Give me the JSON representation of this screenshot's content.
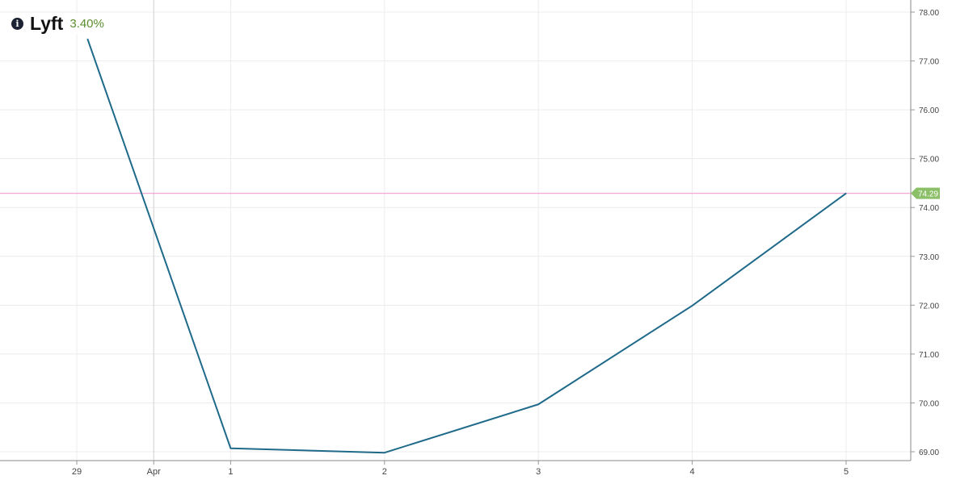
{
  "header": {
    "icon": "info-icon",
    "title": "Lyft",
    "change": "3.40%",
    "change_color": "#5a8f2e"
  },
  "chart_data": {
    "type": "line",
    "title": "Lyft",
    "x_ticks": [
      {
        "label": "29",
        "pos": 0
      },
      {
        "label": "Apr",
        "pos": 0.5
      },
      {
        "label": "1",
        "pos": 1
      },
      {
        "label": "2",
        "pos": 2
      },
      {
        "label": "3",
        "pos": 3
      },
      {
        "label": "4",
        "pos": 4
      },
      {
        "label": "5",
        "pos": 5
      }
    ],
    "x": [
      0.07,
      1,
      2,
      3,
      4,
      5
    ],
    "values": [
      77.45,
      69.07,
      68.98,
      69.97,
      71.99,
      74.29
    ],
    "y_ticks": [
      "69.00",
      "70.00",
      "71.00",
      "72.00",
      "73.00",
      "74.00",
      "75.00",
      "76.00",
      "77.00",
      "78.00"
    ],
    "ylim": [
      69,
      78
    ],
    "current_value": "74.29",
    "current_line_color": "#f4a6d7",
    "badge_color": "#8cc068",
    "line_color": "#1f6a8a",
    "grid": true,
    "y_axis_side": "right"
  }
}
